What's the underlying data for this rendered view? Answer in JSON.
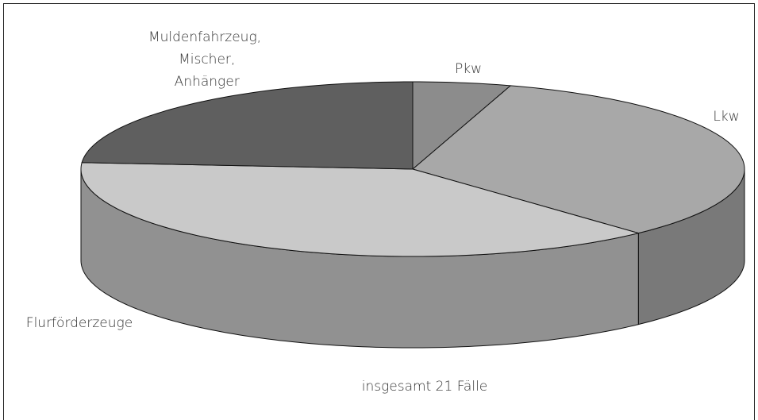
{
  "chart_data": {
    "type": "pie3d",
    "categories": [
      "Pkw",
      "Lkw",
      "Flurförderzeuge",
      "Muldenfahrzeug, Mischer, Anhänger"
    ],
    "values": [
      1,
      7,
      8,
      5
    ],
    "colors": [
      "#8c8c8c",
      "#a8a8a8",
      "#c9c9c9",
      "#5f5f5f"
    ],
    "annotation": "insgesamt 21 Fälle"
  }
}
